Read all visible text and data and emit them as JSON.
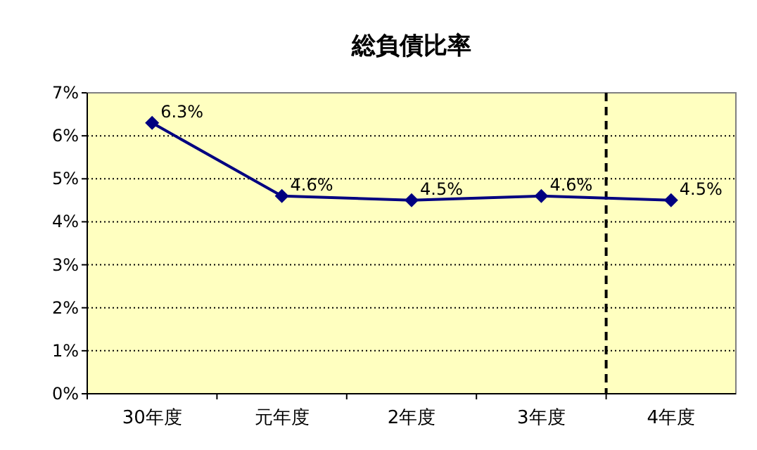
{
  "chart_data": {
    "type": "line",
    "title": "総負債比率",
    "categories": [
      "30年度",
      "元年度",
      "2年度",
      "3年度",
      "4年度"
    ],
    "series": [
      {
        "color": "#000080",
        "values": [
          6.3,
          4.6,
          4.5,
          4.6,
          4.5
        ],
        "value_labels": [
          "6.3%",
          "4.6%",
          "4.5%",
          "4.6%",
          "4.5%"
        ]
      }
    ],
    "ylim": [
      0,
      7
    ],
    "yticks": [
      {
        "value": 0,
        "label": "0%"
      },
      {
        "value": 1,
        "label": "1%"
      },
      {
        "value": 2,
        "label": "2%"
      },
      {
        "value": 3,
        "label": "3%"
      },
      {
        "value": 4,
        "label": "4%"
      },
      {
        "value": 5,
        "label": "5%"
      },
      {
        "value": 6,
        "label": "6%"
      },
      {
        "value": 7,
        "label": "7%"
      }
    ],
    "grid": "y",
    "marker": "diamond",
    "line_style": "solid"
  }
}
